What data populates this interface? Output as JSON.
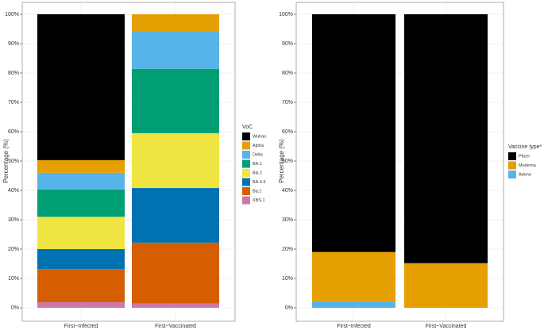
{
  "chart_data": [
    {
      "type": "bar",
      "stacked": true,
      "ylabel": "Percentage (%)",
      "legend_title": "VoC",
      "categories": [
        "First−Infected",
        "First−Vaccinated"
      ],
      "series": [
        {
          "name": "Wuhan",
          "color": "#000000",
          "values": [
            49.7,
            0
          ]
        },
        {
          "name": "Alpha",
          "color": "#E69F00",
          "values": [
            4.3,
            5.7
          ]
        },
        {
          "name": "Delta",
          "color": "#56B4E9",
          "values": [
            5.7,
            12.9
          ]
        },
        {
          "name": "BA.1",
          "color": "#009E73",
          "values": [
            9.3,
            21.9
          ]
        },
        {
          "name": "BA.2",
          "color": "#F0E442",
          "values": [
            11,
            18.7
          ]
        },
        {
          "name": "BA.4.5",
          "color": "#0072B2",
          "values": [
            6.8,
            18.6
          ]
        },
        {
          "name": "Bq.1",
          "color": "#D55E00",
          "values": [
            11.3,
            20.8
          ]
        },
        {
          "name": "XBS.1",
          "color": "#CC79A7",
          "values": [
            1.9,
            1.4
          ]
        }
      ],
      "ylim": [
        0,
        100
      ],
      "yticks": [
        {
          "value": 0,
          "label": "0%"
        },
        {
          "value": 10,
          "label": "10%"
        },
        {
          "value": 20,
          "label": "20%"
        },
        {
          "value": 30,
          "label": "30%"
        },
        {
          "value": 40,
          "label": "40%"
        },
        {
          "value": 50,
          "label": "50%"
        },
        {
          "value": 60,
          "label": "60%"
        },
        {
          "value": 70,
          "label": "70%"
        },
        {
          "value": 80,
          "label": "80%"
        },
        {
          "value": 90,
          "label": "90%"
        },
        {
          "value": 100,
          "label": "100%"
        }
      ],
      "grid": true
    },
    {
      "type": "bar",
      "stacked": true,
      "ylabel": "Percentage (%)",
      "legend_title": "Vaccine type*",
      "categories": [
        "First−Infected",
        "First−Vaccinated"
      ],
      "series": [
        {
          "name": "Pfizer",
          "color": "#000000",
          "values": [
            81,
            84.8
          ]
        },
        {
          "name": "Moderna",
          "color": "#E69F00",
          "values": [
            16.8,
            15.2
          ]
        },
        {
          "name": "Adeno",
          "color": "#56B4E9",
          "values": [
            2.2,
            0
          ]
        }
      ],
      "ylim": [
        0,
        100
      ],
      "yticks": [
        {
          "value": 0,
          "label": "0%"
        },
        {
          "value": 10,
          "label": "10%"
        },
        {
          "value": 20,
          "label": "20%"
        },
        {
          "value": 30,
          "label": "30%"
        },
        {
          "value": 40,
          "label": "40%"
        },
        {
          "value": 50,
          "label": "50%"
        },
        {
          "value": 60,
          "label": "60%"
        },
        {
          "value": 70,
          "label": "70%"
        },
        {
          "value": 80,
          "label": "80%"
        },
        {
          "value": 90,
          "label": "90%"
        },
        {
          "value": 100,
          "label": "100%"
        }
      ],
      "grid": true
    }
  ]
}
